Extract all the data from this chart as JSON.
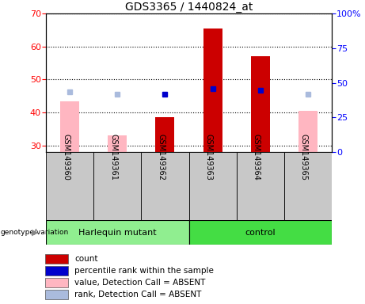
{
  "title": "GDS3365 / 1440824_at",
  "samples": [
    "GSM149360",
    "GSM149361",
    "GSM149362",
    "GSM149363",
    "GSM149364",
    "GSM149365"
  ],
  "harlequin_indices": [
    0,
    1,
    2
  ],
  "control_indices": [
    3,
    4,
    5
  ],
  "ylim_left": [
    28,
    70
  ],
  "ylim_right": [
    0,
    100
  ],
  "yticks_left": [
    30,
    40,
    50,
    60,
    70
  ],
  "yticks_right": [
    0,
    25,
    50,
    75,
    100
  ],
  "yticklabels_right": [
    "0",
    "25",
    "50",
    "75",
    "100%"
  ],
  "count_values": [
    null,
    null,
    38.5,
    65.5,
    57.0,
    null
  ],
  "count_color": "#CC0000",
  "rank_values": [
    null,
    null,
    42.0,
    46.0,
    44.5,
    null
  ],
  "rank_color": "#0000CC",
  "absent_value_values": [
    43.5,
    33.0,
    null,
    null,
    null,
    40.5
  ],
  "absent_value_color": "#FFB6C1",
  "absent_rank_values": [
    43.5,
    41.5,
    null,
    null,
    null,
    41.5
  ],
  "absent_rank_color": "#AABBDD",
  "bar_width": 0.4,
  "legend_items": [
    {
      "label": "count",
      "color": "#CC0000"
    },
    {
      "label": "percentile rank within the sample",
      "color": "#0000CC"
    },
    {
      "label": "value, Detection Call = ABSENT",
      "color": "#FFB6C1"
    },
    {
      "label": "rank, Detection Call = ABSENT",
      "color": "#AABBDD"
    }
  ],
  "group_label_fontsize": 8,
  "tick_fontsize": 8,
  "title_fontsize": 10,
  "sample_fontsize": 7,
  "legend_fontsize": 7.5,
  "harlequin_color": "#90EE90",
  "control_color": "#44DD44",
  "sample_bg_color": "#C8C8C8",
  "plot_bg_color": "#FFFFFF"
}
